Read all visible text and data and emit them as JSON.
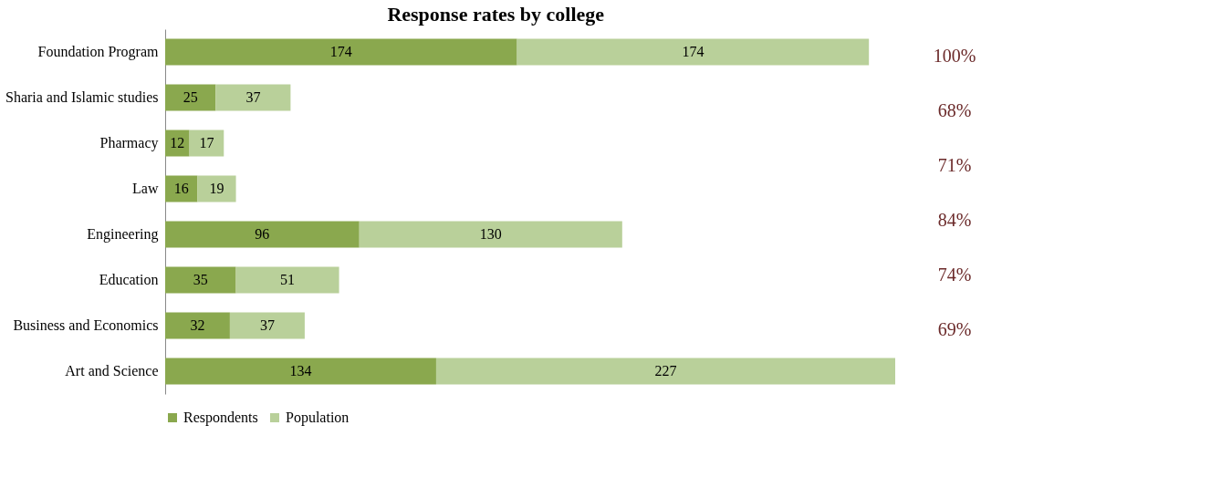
{
  "chart_data": {
    "type": "bar",
    "orientation": "horizontal",
    "stacked": true,
    "title": "Response rates by college",
    "categories": [
      "Foundation Program",
      "Sharia and Islamic studies",
      "Pharmacy",
      "Law",
      "Engineering",
      "Education",
      "Business and Economics",
      "Art and Science"
    ],
    "series": [
      {
        "name": "Respondents",
        "color": "#8aa84e",
        "values": [
          174,
          25,
          12,
          16,
          96,
          35,
          32,
          134
        ]
      },
      {
        "name": "Population",
        "color": "#b9d09a",
        "values": [
          174,
          37,
          17,
          19,
          130,
          51,
          37,
          227
        ]
      }
    ],
    "data_labels": true,
    "legend": "bottom",
    "annotations": [
      "100%",
      "68%",
      "71%",
      "84%",
      "74%",
      "69%"
    ]
  }
}
